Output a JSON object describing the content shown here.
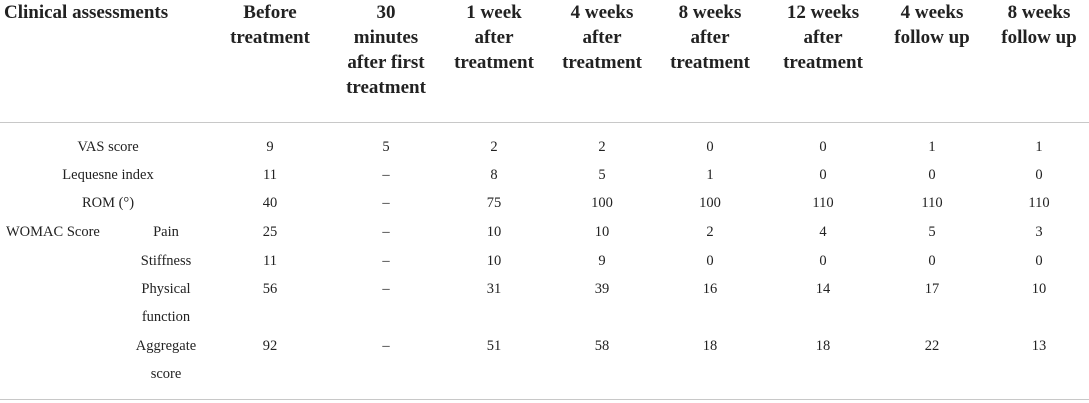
{
  "table": {
    "headers": [
      "Clinical assessments",
      "Before treatment",
      "30 minutes after first treatment",
      "1 week after treatment",
      "4 weeks after treatment",
      "8 weeks after treatment",
      "12 weeks after treatment",
      "4 weeks follow up",
      "8 weeks follow up"
    ],
    "header_lines": [
      [
        "Clinical assessments"
      ],
      [
        "Before",
        "treatment"
      ],
      [
        "30",
        "minutes",
        "after first",
        "treatment"
      ],
      [
        "1 week",
        "after",
        "treatment"
      ],
      [
        "4 weeks",
        "after",
        "treatment"
      ],
      [
        "8 weeks",
        "after",
        "treatment"
      ],
      [
        "12 weeks",
        "after",
        "treatment"
      ],
      [
        "4 weeks",
        "follow up"
      ],
      [
        "8 weeks",
        "follow up"
      ]
    ],
    "group_label": "WOMAC Score",
    "rows": [
      {
        "label": "VAS score",
        "label_lines": [
          "VAS score"
        ],
        "values": [
          "9",
          "5",
          "2",
          "2",
          "0",
          "0",
          "1",
          "1"
        ]
      },
      {
        "label": "Lequesne index",
        "label_lines": [
          "Lequesne index"
        ],
        "values": [
          "11",
          "–",
          "8",
          "5",
          "1",
          "0",
          "0",
          "0"
        ]
      },
      {
        "label": "ROM (°)",
        "label_lines": [
          "ROM (°)"
        ],
        "values": [
          "40",
          "–",
          "75",
          "100",
          "100",
          "110",
          "110",
          "110"
        ]
      },
      {
        "label": "Pain",
        "label_lines": [
          "Pain"
        ],
        "values": [
          "25",
          "–",
          "10",
          "10",
          "2",
          "4",
          "5",
          "3"
        ]
      },
      {
        "label": "Stiffness",
        "label_lines": [
          "Stiffness"
        ],
        "values": [
          "11",
          "–",
          "10",
          "9",
          "0",
          "0",
          "0",
          "0"
        ]
      },
      {
        "label": "Physical function",
        "label_lines": [
          "Physical",
          "function"
        ],
        "values": [
          "56",
          "–",
          "31",
          "39",
          "16",
          "14",
          "17",
          "10"
        ]
      },
      {
        "label": "Aggregate score",
        "label_lines": [
          "Aggregate",
          "score"
        ],
        "values": [
          "92",
          "–",
          "51",
          "58",
          "18",
          "18",
          "22",
          "13"
        ]
      }
    ]
  }
}
